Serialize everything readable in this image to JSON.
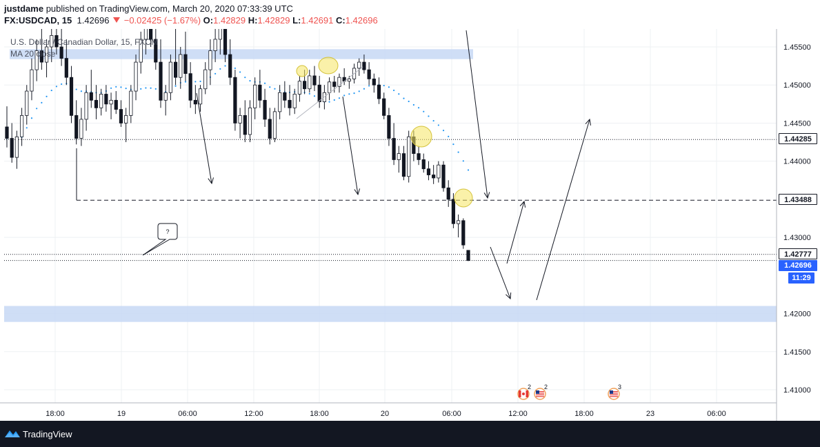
{
  "header": {
    "author": "justdame",
    "published_text": "published on TradingView.com, March 20, 2020 07:33:39 UTC",
    "symbol": "FX:USDCAD, 15",
    "last": "1.42696",
    "change": "−0.02425 (−1.67%)",
    "o_label": "O:",
    "o_value": "1.42829",
    "h_label": "H:",
    "h_value": "1.42829",
    "l_label": "L:",
    "l_value": "1.42691",
    "c_label": "C:",
    "c_value": "1.42696"
  },
  "legend": {
    "title": "U.S. Dollar / Canadian Dollar, 15, FXCM",
    "ma": "MA 20 close"
  },
  "price_tags": {
    "level_high": "1.44285",
    "level_mid": "1.43488",
    "level_low": "1.42777",
    "current": "1.42696",
    "countdown": "11:29"
  },
  "annotation": {
    "callout": "?"
  },
  "events": [
    {
      "label": "2",
      "flag": "canada-flag-icon"
    },
    {
      "label": "2",
      "flag": "us-flag-icon"
    },
    {
      "label": "3",
      "flag": "us-flag-icon"
    }
  ],
  "footer": {
    "brand": "TradingView"
  },
  "colors": {
    "up_candle": "#ffffff",
    "down_candle": "#131722",
    "ma_line": "#2196f3",
    "zone": "#c7d8f5",
    "highlight": "#f5e663",
    "price_badge": "#2962ff",
    "footer_bg": "#131722"
  },
  "chart_data": {
    "type": "candlestick",
    "symbol": "FX:USDCAD",
    "timeframe": "15",
    "x_tick_labels": [
      "18:00",
      "19",
      "06:00",
      "12:00",
      "18:00",
      "20",
      "06:00",
      "12:00",
      "18:00",
      "23",
      "06:00"
    ],
    "y_tick_labels": [
      "1.45500",
      "1.45000",
      "1.44500",
      "1.44000",
      "1.43000",
      "1.42000",
      "1.41500",
      "1.41000"
    ],
    "ylim": [
      1.4075,
      1.4585
    ],
    "horizontal_levels": [
      1.44285,
      1.43488,
      1.42777,
      1.42696
    ],
    "zones": [
      [
        1.4534,
        1.4547
      ],
      [
        1.4189,
        1.421
      ]
    ],
    "ohlc": [
      [
        1.4445,
        1.4472,
        1.4418,
        1.443
      ],
      [
        1.443,
        1.445,
        1.4398,
        1.4405
      ],
      [
        1.4405,
        1.444,
        1.439,
        1.4432
      ],
      [
        1.4432,
        1.447,
        1.442,
        1.446
      ],
      [
        1.446,
        1.45,
        1.4448,
        1.4492
      ],
      [
        1.4492,
        1.4535,
        1.448,
        1.452
      ],
      [
        1.452,
        1.456,
        1.4505,
        1.4545
      ],
      [
        1.4545,
        1.4575,
        1.452,
        1.453
      ],
      [
        1.453,
        1.456,
        1.451,
        1.455
      ],
      [
        1.455,
        1.458,
        1.453,
        1.4565
      ],
      [
        1.4565,
        1.4585,
        1.454,
        1.455
      ],
      [
        1.455,
        1.4575,
        1.4525,
        1.4535
      ],
      [
        1.4535,
        1.456,
        1.45,
        1.451
      ],
      [
        1.451,
        1.4525,
        1.445,
        1.446
      ],
      [
        1.446,
        1.448,
        1.4422,
        1.443
      ],
      [
        1.443,
        1.447,
        1.442,
        1.4455
      ],
      [
        1.4455,
        1.45,
        1.444,
        1.449
      ],
      [
        1.449,
        1.452,
        1.447,
        1.448
      ],
      [
        1.448,
        1.45,
        1.4455,
        1.447
      ],
      [
        1.447,
        1.4495,
        1.446,
        1.4488
      ],
      [
        1.4488,
        1.45,
        1.4465,
        1.4475
      ],
      [
        1.4475,
        1.449,
        1.4455,
        1.448
      ],
      [
        1.448,
        1.4492,
        1.4462,
        1.4468
      ],
      [
        1.4468,
        1.448,
        1.4445,
        1.445
      ],
      [
        1.445,
        1.447,
        1.4425,
        1.446
      ],
      [
        1.446,
        1.45,
        1.445,
        1.4492
      ],
      [
        1.4492,
        1.454,
        1.448,
        1.453
      ],
      [
        1.453,
        1.457,
        1.4515,
        1.456
      ],
      [
        1.456,
        1.4585,
        1.454,
        1.4575
      ],
      [
        1.4575,
        1.4585,
        1.455,
        1.456
      ],
      [
        1.456,
        1.458,
        1.452,
        1.453
      ],
      [
        1.453,
        1.456,
        1.447,
        1.448
      ],
      [
        1.448,
        1.45,
        1.446,
        1.449
      ],
      [
        1.449,
        1.454,
        1.448,
        1.453
      ],
      [
        1.453,
        1.458,
        1.45,
        1.451
      ],
      [
        1.451,
        1.455,
        1.4495,
        1.454
      ],
      [
        1.454,
        1.457,
        1.4505,
        1.4515
      ],
      [
        1.4515,
        1.453,
        1.447,
        1.448
      ],
      [
        1.448,
        1.45,
        1.4462,
        1.4475
      ],
      [
        1.4475,
        1.45,
        1.4465,
        1.4495
      ],
      [
        1.4495,
        1.453,
        1.4488,
        1.452
      ],
      [
        1.452,
        1.456,
        1.45,
        1.4545
      ],
      [
        1.4545,
        1.458,
        1.453,
        1.456
      ],
      [
        1.456,
        1.4585,
        1.454,
        1.4575
      ],
      [
        1.4575,
        1.4585,
        1.453,
        1.454
      ],
      [
        1.454,
        1.456,
        1.45,
        1.451
      ],
      [
        1.451,
        1.452,
        1.444,
        1.445
      ],
      [
        1.445,
        1.447,
        1.443,
        1.446
      ],
      [
        1.446,
        1.448,
        1.4425,
        1.4435
      ],
      [
        1.4435,
        1.448,
        1.4425,
        1.447
      ],
      [
        1.447,
        1.451,
        1.4455,
        1.45
      ],
      [
        1.45,
        1.452,
        1.447,
        1.448
      ],
      [
        1.448,
        1.4495,
        1.4445,
        1.4455
      ],
      [
        1.4455,
        1.447,
        1.4422,
        1.443
      ],
      [
        1.443,
        1.447,
        1.4425,
        1.4465
      ],
      [
        1.4465,
        1.45,
        1.4455,
        1.449
      ],
      [
        1.449,
        1.4505,
        1.447,
        1.448
      ],
      [
        1.448,
        1.45,
        1.446,
        1.447
      ],
      [
        1.447,
        1.4495,
        1.4462,
        1.4488
      ],
      [
        1.4488,
        1.4512,
        1.4478,
        1.4505
      ],
      [
        1.4505,
        1.452,
        1.4488,
        1.4495
      ],
      [
        1.4495,
        1.452,
        1.449,
        1.4512
      ],
      [
        1.4512,
        1.4525,
        1.4492,
        1.45
      ],
      [
        1.45,
        1.4512,
        1.447,
        1.4478
      ],
      [
        1.4478,
        1.45,
        1.4468,
        1.449
      ],
      [
        1.449,
        1.451,
        1.448,
        1.4504
      ],
      [
        1.4504,
        1.4512,
        1.449,
        1.4498
      ],
      [
        1.4498,
        1.4515,
        1.449,
        1.451
      ],
      [
        1.451,
        1.4522,
        1.45,
        1.4505
      ],
      [
        1.4505,
        1.4512,
        1.4495,
        1.4508
      ],
      [
        1.4508,
        1.4528,
        1.4502,
        1.4522
      ],
      [
        1.4522,
        1.4535,
        1.4512,
        1.453
      ],
      [
        1.453,
        1.454,
        1.4515,
        1.452
      ],
      [
        1.452,
        1.453,
        1.45,
        1.4508
      ],
      [
        1.4508,
        1.4515,
        1.449,
        1.45
      ],
      [
        1.45,
        1.451,
        1.4475,
        1.4482
      ],
      [
        1.4482,
        1.449,
        1.4455,
        1.446
      ],
      [
        1.446,
        1.447,
        1.442,
        1.443
      ],
      [
        1.443,
        1.445,
        1.4395,
        1.4402
      ],
      [
        1.4402,
        1.442,
        1.4385,
        1.441
      ],
      [
        1.441,
        1.442,
        1.4375,
        1.438
      ],
      [
        1.438,
        1.444,
        1.4372,
        1.4432
      ],
      [
        1.4432,
        1.444,
        1.44,
        1.441
      ],
      [
        1.441,
        1.442,
        1.4395,
        1.4402
      ],
      [
        1.4402,
        1.441,
        1.4385,
        1.439
      ],
      [
        1.439,
        1.44,
        1.4375,
        1.4382
      ],
      [
        1.4382,
        1.4395,
        1.437,
        1.4378
      ],
      [
        1.4378,
        1.44,
        1.4372,
        1.4395
      ],
      [
        1.4395,
        1.44,
        1.436,
        1.4365
      ],
      [
        1.4365,
        1.4375,
        1.434,
        1.435
      ],
      [
        1.435,
        1.4358,
        1.4312,
        1.4318
      ],
      [
        1.4318,
        1.433,
        1.43,
        1.4322
      ],
      [
        1.4322,
        1.4325,
        1.4285,
        1.429
      ],
      [
        1.4283,
        1.4283,
        1.4269,
        1.42696
      ]
    ]
  }
}
